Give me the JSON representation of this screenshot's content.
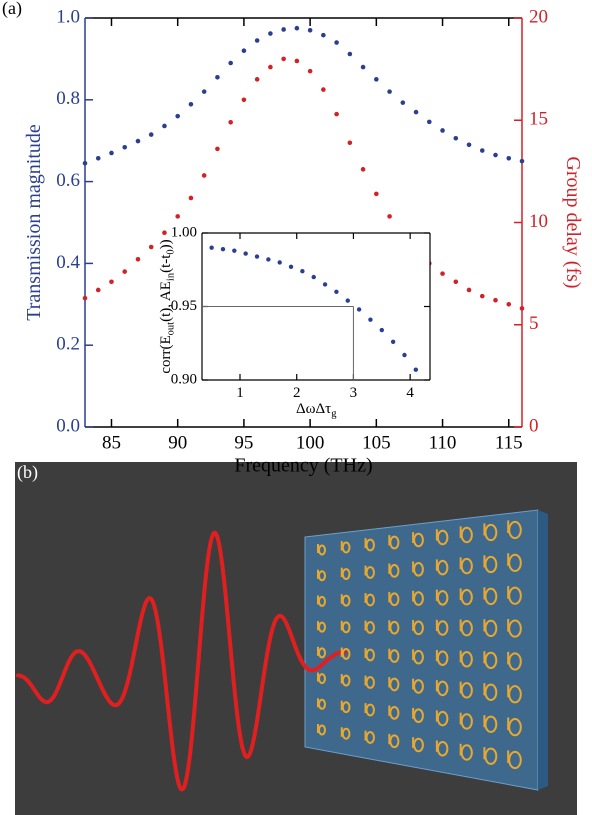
{
  "chart_data": [
    {
      "type": "scatter",
      "panel_label": "(a)",
      "xlabel": "Frequency (THz)",
      "ylabel": "Transmission magnitude",
      "y2label": "Group delay (fs)",
      "x": [
        83,
        84,
        85,
        86,
        87,
        88,
        89,
        90,
        91,
        92,
        93,
        94,
        95,
        96,
        97,
        98,
        99,
        100,
        101,
        102,
        103,
        104,
        105,
        106,
        107,
        108,
        109,
        110,
        111,
        112,
        113,
        114,
        115,
        116
      ],
      "xlim": [
        83,
        116
      ],
      "xticks": [
        85,
        90,
        95,
        100,
        105,
        110,
        115
      ],
      "ylim": [
        0,
        1
      ],
      "yticks": [
        {
          "value": 0,
          "label": "0.0"
        },
        0.2,
        0.4,
        0.6,
        0.8,
        {
          "value": 1,
          "label": "1.0"
        }
      ],
      "y2lim": [
        0,
        20
      ],
      "y2ticks": [
        0,
        5,
        10,
        15,
        20
      ],
      "series": [
        {
          "color": "#2b3f91",
          "values": [
            0.645,
            0.657,
            0.67,
            0.684,
            0.699,
            0.715,
            0.736,
            0.76,
            0.789,
            0.82,
            0.855,
            0.89,
            0.92,
            0.945,
            0.962,
            0.972,
            0.975,
            0.97,
            0.958,
            0.94,
            0.912,
            0.88,
            0.85,
            0.82,
            0.793,
            0.77,
            0.746,
            0.725,
            0.706,
            0.69,
            0.676,
            0.665,
            0.657,
            0.65
          ]
        },
        {
          "color": "#d42027",
          "axis": "y2",
          "values": [
            6.3,
            6.7,
            7.1,
            7.6,
            8.2,
            8.8,
            9.5,
            10.3,
            11.2,
            12.3,
            13.6,
            14.9,
            16.0,
            17.0,
            17.6,
            18.0,
            17.9,
            17.4,
            16.5,
            15.3,
            13.9,
            12.6,
            11.4,
            10.3,
            9.4,
            8.6,
            8.0,
            7.5,
            7.1,
            6.7,
            6.4,
            6.2,
            6.0,
            5.8
          ]
        }
      ]
    },
    {
      "type": "scatter",
      "xlabel": [
        "ΔωΔτ",
        "g"
      ],
      "ylabel": [
        "corr(E",
        "out",
        "(t), AE",
        "in",
        "(t-t",
        "0",
        "))"
      ],
      "x": [
        0.5,
        0.7,
        0.9,
        1.1,
        1.3,
        1.5,
        1.7,
        1.9,
        2.1,
        2.3,
        2.5,
        2.7,
        2.9,
        3.1,
        3.3,
        3.5,
        3.7,
        3.9,
        4.1
      ],
      "xlim": [
        0.33,
        4.35
      ],
      "xticks": [
        1,
        2,
        3,
        4
      ],
      "ylim": [
        0.9,
        1
      ],
      "yticks": [
        {
          "value": 0.9,
          "label": "0.90"
        },
        0.95,
        {
          "value": 1,
          "label": "1.00"
        }
      ],
      "guide": {
        "x": 3,
        "y": 0.95
      },
      "series": [
        {
          "color": "#2b3f91",
          "values": [
            0.99,
            0.989,
            0.988,
            0.986,
            0.984,
            0.982,
            0.98,
            0.977,
            0.974,
            0.97,
            0.965,
            0.96,
            0.954,
            0.948,
            0.941,
            0.934,
            0.926,
            0.917,
            0.907
          ]
        }
      ]
    }
  ],
  "panel_b": {
    "label": "(b)"
  }
}
